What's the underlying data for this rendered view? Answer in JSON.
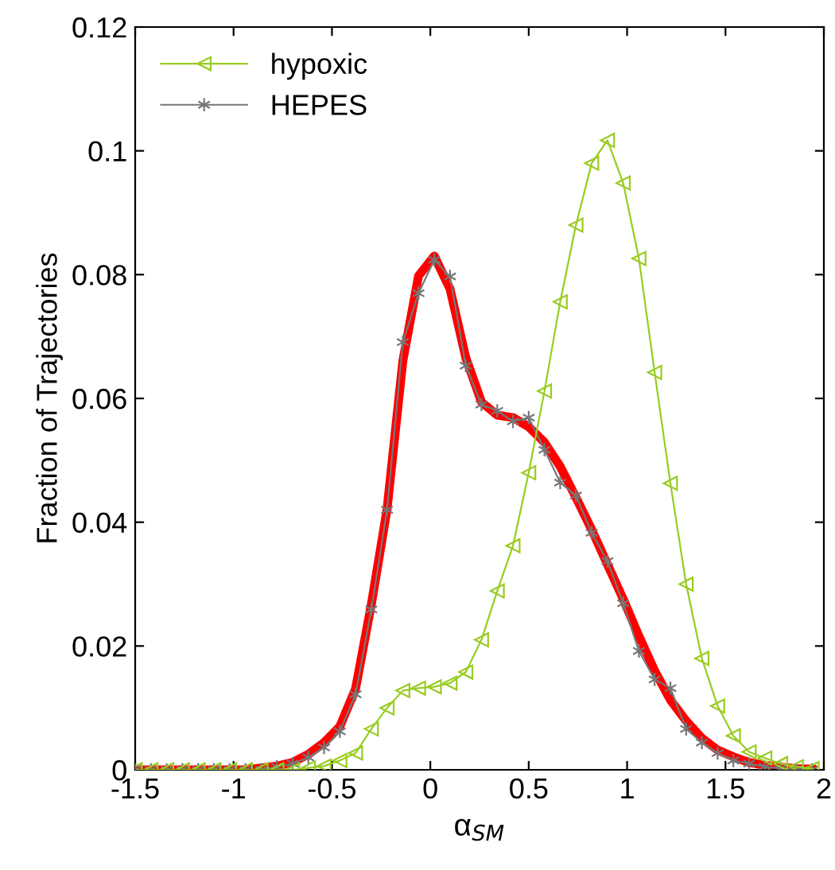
{
  "chart_data": {
    "type": "line",
    "xlabel": "α$_{SM}$",
    "ylabel": "Fraction of Trajectories",
    "x": [
      -1.5,
      -1.42,
      -1.34,
      -1.26,
      -1.18,
      -1.1,
      -1.02,
      -0.94,
      -0.86,
      -0.78,
      -0.7,
      -0.62,
      -0.54,
      -0.46,
      -0.38,
      -0.3,
      -0.22,
      -0.14,
      -0.06,
      0.02,
      0.1,
      0.18,
      0.26,
      0.34,
      0.42,
      0.5,
      0.58,
      0.66,
      0.74,
      0.82,
      0.9,
      0.98,
      1.06,
      1.14,
      1.22,
      1.3,
      1.38,
      1.46,
      1.54,
      1.62,
      1.7,
      1.78,
      1.86,
      1.94
    ],
    "series": [
      {
        "name": "hypoxic",
        "color": "#99cc22",
        "marker": "triangle",
        "values": [
          0,
          0,
          0,
          0,
          0,
          0,
          0,
          0,
          0,
          0,
          0,
          0.0003,
          0.0006,
          0.0015,
          0.0027,
          0.0066,
          0.01,
          0.0128,
          0.0132,
          0.0134,
          0.014,
          0.0158,
          0.021,
          0.0289,
          0.0362,
          0.048,
          0.0612,
          0.0756,
          0.088,
          0.098,
          0.1017,
          0.0948,
          0.0826,
          0.0642,
          0.0463,
          0.03,
          0.018,
          0.0103,
          0.0055,
          0.0029,
          0.0019,
          0.001,
          0.0005,
          0.0002
        ]
      },
      {
        "name": "HEPES",
        "color": "#777777",
        "marker": "cross",
        "values": [
          0,
          0,
          0,
          0,
          0,
          0,
          0,
          0,
          0,
          0.0005,
          0.001,
          0.002,
          0.0036,
          0.0062,
          0.0122,
          0.0259,
          0.042,
          0.0691,
          0.077,
          0.0824,
          0.0797,
          0.0653,
          0.059,
          0.058,
          0.0563,
          0.0569,
          0.0517,
          0.0464,
          0.0443,
          0.0383,
          0.0337,
          0.0269,
          0.0192,
          0.0146,
          0.0132,
          0.0066,
          0.0044,
          0.0027,
          0.0015,
          0.001,
          0.0005,
          0.0002,
          0.0001,
          0
        ]
      },
      {
        "color": "#ff0000",
        "marker": "none",
        "values": [
          0,
          0,
          0,
          0,
          0,
          0,
          0,
          0,
          0.0003,
          0.0006,
          0.0012,
          0.0025,
          0.0044,
          0.007,
          0.0131,
          0.0267,
          0.0421,
          0.066,
          0.0798,
          0.083,
          0.0777,
          0.0666,
          0.0594,
          0.0573,
          0.0569,
          0.0554,
          0.0529,
          0.049,
          0.044,
          0.0388,
          0.0332,
          0.0276,
          0.0216,
          0.016,
          0.0113,
          0.0079,
          0.0051,
          0.0032,
          0.0021,
          0.0012,
          0.0007,
          0.0004,
          0.0002,
          0.0001
        ]
      }
    ],
    "xlim": [
      -1.5,
      2
    ],
    "xticks": [
      -1.5,
      -1,
      -0.5,
      0,
      0.5,
      1,
      1.5,
      2
    ],
    "ylim": [
      0,
      0.12
    ],
    "yticks": [
      0,
      0.02,
      0.04,
      0.06,
      0.08,
      0.1,
      0.12
    ],
    "legend": "top left",
    "grid": false
  }
}
